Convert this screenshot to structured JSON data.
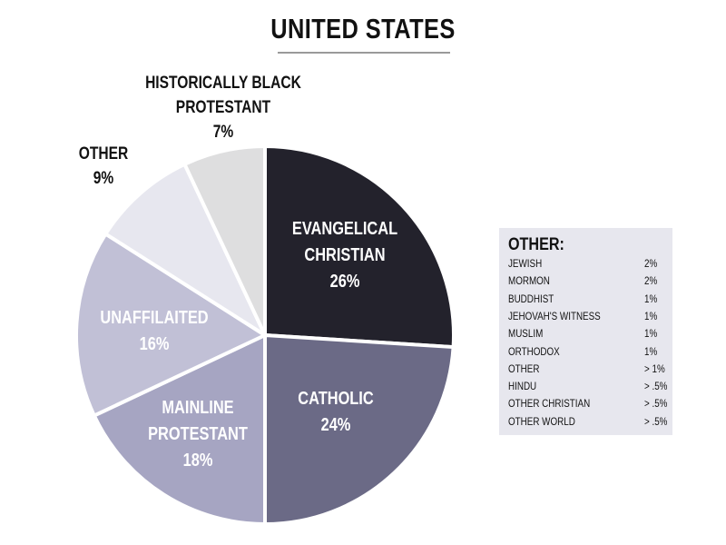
{
  "chart_data": {
    "type": "pie",
    "title": "UNITED STATES",
    "slices": [
      {
        "label_lines": [
          "EVANGELICAL",
          "CHRISTIAN"
        ],
        "value": 26,
        "value_label": "26%",
        "color": "#23222c",
        "text_color": "#ffffff"
      },
      {
        "label_lines": [
          "CATHOLIC"
        ],
        "value": 24,
        "value_label": "24%",
        "color": "#6b6a86",
        "text_color": "#ffffff"
      },
      {
        "label_lines": [
          "MAINLINE",
          "PROTESTANT"
        ],
        "value": 18,
        "value_label": "18%",
        "color": "#a6a5c2",
        "text_color": "#ffffff"
      },
      {
        "label_lines": [
          "UNAFFILAITED"
        ],
        "value": 16,
        "value_label": "16%",
        "color": "#c1c0d6",
        "text_color": "#ffffff"
      },
      {
        "label_lines": [
          "OTHER"
        ],
        "value": 9,
        "value_label": "9%",
        "color": "#e7e7ef",
        "text_color": "#111111"
      },
      {
        "label_lines": [
          "HISTORICALLY BLACK",
          "PROTESTANT"
        ],
        "value": 7,
        "value_label": "7%",
        "color": "#dededf",
        "text_color": "#111111"
      }
    ]
  },
  "other_breakdown": {
    "title": "OTHER:",
    "items": [
      {
        "name": "JEWISH",
        "value": "2%"
      },
      {
        "name": "MORMON",
        "value": "2%"
      },
      {
        "name": "BUDDHIST",
        "value": "1%"
      },
      {
        "name": "JEHOVAH'S WITNESS",
        "value": "1%"
      },
      {
        "name": "MUSLIM",
        "value": "1%"
      },
      {
        "name": "ORTHODOX",
        "value": "1%"
      },
      {
        "name": "OTHER",
        "value": "> 1%"
      },
      {
        "name": "HINDU",
        "value": "> .5%"
      },
      {
        "name": "OTHER CHRISTIAN",
        "value": "> .5%"
      },
      {
        "name": "OTHER WORLD",
        "value": "> .5%"
      }
    ]
  }
}
